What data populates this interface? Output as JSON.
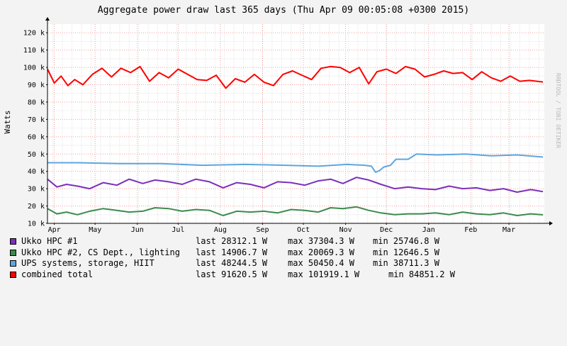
{
  "chart_data": {
    "type": "line",
    "title": "Aggregate power draw last 365 days (Thu Apr 09 00:05:08 +0300 2015)",
    "ylabel": "Watts",
    "watermark": "RRDTOOL / TOBI OETIKER",
    "ylim": [
      10000,
      125000
    ],
    "yticks": [
      {
        "value": 10000,
        "label": "10 k"
      },
      {
        "value": 20000,
        "label": "20 k"
      },
      {
        "value": 30000,
        "label": "30 k"
      },
      {
        "value": 40000,
        "label": "40 k"
      },
      {
        "value": 50000,
        "label": "50 k"
      },
      {
        "value": 60000,
        "label": "60 k"
      },
      {
        "value": 70000,
        "label": "70 k"
      },
      {
        "value": 80000,
        "label": "80 k"
      },
      {
        "value": 90000,
        "label": "90 k"
      },
      {
        "value": 100000,
        "label": "100 k"
      },
      {
        "value": 110000,
        "label": "110 k"
      },
      {
        "value": 120000,
        "label": "120 k"
      }
    ],
    "xlim": [
      "2014-04-09",
      "2015-04-09"
    ],
    "xticks": [
      {
        "date": "2014-04-14",
        "label": "Apr"
      },
      {
        "date": "2014-05-14",
        "label": "May"
      },
      {
        "date": "2014-06-14",
        "label": "Jun"
      },
      {
        "date": "2014-07-14",
        "label": "Jul"
      },
      {
        "date": "2014-08-14",
        "label": "Aug"
      },
      {
        "date": "2014-09-14",
        "label": "Sep"
      },
      {
        "date": "2014-10-14",
        "label": "Oct"
      },
      {
        "date": "2014-11-14",
        "label": "Nov"
      },
      {
        "date": "2014-12-14",
        "label": "Dec"
      },
      {
        "date": "2015-01-14",
        "label": "Jan"
      },
      {
        "date": "2015-02-14",
        "label": "Feb"
      },
      {
        "date": "2015-03-14",
        "label": "Mar"
      }
    ],
    "grid": true,
    "series": [
      {
        "name": "Ukko HPC #1",
        "color": "#7b2fbe",
        "last": "last 28312.1 W",
        "max": "max 37304.3 W",
        "min": "min 25746.8 W",
        "x": [
          "2014-04-09",
          "2014-04-16",
          "2014-04-23",
          "2014-05-01",
          "2014-05-10",
          "2014-05-20",
          "2014-05-30",
          "2014-06-08",
          "2014-06-18",
          "2014-06-27",
          "2014-07-07",
          "2014-07-17",
          "2014-07-27",
          "2014-08-06",
          "2014-08-16",
          "2014-08-26",
          "2014-09-05",
          "2014-09-15",
          "2014-09-25",
          "2014-10-05",
          "2014-10-15",
          "2014-10-25",
          "2014-11-03",
          "2014-11-12",
          "2014-11-22",
          "2014-12-01",
          "2014-12-10",
          "2014-12-20",
          "2014-12-30",
          "2015-01-09",
          "2015-01-19",
          "2015-01-29",
          "2015-02-08",
          "2015-02-18",
          "2015-02-28",
          "2015-03-10",
          "2015-03-20",
          "2015-03-30",
          "2015-04-08"
        ],
        "values": [
          35500,
          31000,
          32500,
          31500,
          30000,
          33500,
          32000,
          35500,
          33000,
          35000,
          34000,
          32500,
          35500,
          34000,
          30500,
          33500,
          32500,
          30500,
          34000,
          33500,
          32000,
          34500,
          35500,
          33000,
          36500,
          35000,
          32500,
          30000,
          31000,
          30000,
          29500,
          31500,
          30000,
          30500,
          29000,
          30000,
          28000,
          29500,
          28312
        ]
      },
      {
        "name": "Ukko HPC #2, CS Dept., lighting",
        "color": "#3d8a4e",
        "last": "last 14906.7 W",
        "max": "max 20069.3 W",
        "min": "min 12646.5 W",
        "x": [
          "2014-04-09",
          "2014-04-16",
          "2014-04-23",
          "2014-05-01",
          "2014-05-10",
          "2014-05-20",
          "2014-05-30",
          "2014-06-08",
          "2014-06-18",
          "2014-06-27",
          "2014-07-07",
          "2014-07-17",
          "2014-07-27",
          "2014-08-06",
          "2014-08-16",
          "2014-08-26",
          "2014-09-05",
          "2014-09-15",
          "2014-09-25",
          "2014-10-05",
          "2014-10-15",
          "2014-10-25",
          "2014-11-03",
          "2014-11-12",
          "2014-11-22",
          "2014-12-01",
          "2014-12-10",
          "2014-12-20",
          "2014-12-30",
          "2015-01-09",
          "2015-01-19",
          "2015-01-29",
          "2015-02-08",
          "2015-02-18",
          "2015-02-28",
          "2015-03-10",
          "2015-03-20",
          "2015-03-30",
          "2015-04-08"
        ],
        "values": [
          18500,
          15500,
          16500,
          15000,
          17000,
          18500,
          17500,
          16500,
          17000,
          19000,
          18500,
          17000,
          18000,
          17500,
          14500,
          17000,
          16500,
          17000,
          16000,
          18000,
          17500,
          16500,
          19000,
          18500,
          19500,
          17500,
          16000,
          15000,
          15500,
          15500,
          16000,
          15000,
          16500,
          15500,
          15000,
          16000,
          14500,
          15500,
          14907
        ]
      },
      {
        "name": "UPS systems, storage, HIIT",
        "color": "#5ea6de",
        "last": "last 48244.5 W",
        "max": "max 50450.4 W",
        "min": "min 38711.3 W",
        "x": [
          "2014-04-09",
          "2014-05-01",
          "2014-06-01",
          "2014-07-01",
          "2014-08-01",
          "2014-09-01",
          "2014-10-01",
          "2014-10-25",
          "2014-11-15",
          "2014-11-28",
          "2014-12-03",
          "2014-12-06",
          "2014-12-09",
          "2014-12-12",
          "2014-12-17",
          "2014-12-21",
          "2014-12-30",
          "2015-01-05",
          "2015-01-20",
          "2015-02-10",
          "2015-03-01",
          "2015-03-20",
          "2015-04-08"
        ],
        "values": [
          45000,
          45000,
          44500,
          44500,
          43500,
          44000,
          43500,
          43000,
          44000,
          43500,
          43000,
          39500,
          40500,
          42500,
          43500,
          47000,
          47000,
          50000,
          49500,
          50000,
          49000,
          49500,
          48245
        ]
      },
      {
        "name": "combined total",
        "color": "#ff0000",
        "last": "last 91620.5 W",
        "max": "max 101919.1 W",
        "min": "min 84851.2 W",
        "x": [
          "2014-04-09",
          "2014-04-14",
          "2014-04-19",
          "2014-04-24",
          "2014-04-29",
          "2014-05-05",
          "2014-05-12",
          "2014-05-19",
          "2014-05-26",
          "2014-06-02",
          "2014-06-09",
          "2014-06-16",
          "2014-06-23",
          "2014-06-30",
          "2014-07-07",
          "2014-07-14",
          "2014-07-21",
          "2014-07-28",
          "2014-08-04",
          "2014-08-11",
          "2014-08-18",
          "2014-08-25",
          "2014-09-01",
          "2014-09-08",
          "2014-09-15",
          "2014-09-22",
          "2014-09-29",
          "2014-10-06",
          "2014-10-13",
          "2014-10-20",
          "2014-10-27",
          "2014-11-03",
          "2014-11-10",
          "2014-11-17",
          "2014-11-24",
          "2014-12-01",
          "2014-12-07",
          "2014-12-14",
          "2014-12-21",
          "2014-12-28",
          "2015-01-04",
          "2015-01-11",
          "2015-01-18",
          "2015-01-25",
          "2015-02-01",
          "2015-02-08",
          "2015-02-15",
          "2015-02-22",
          "2015-03-01",
          "2015-03-08",
          "2015-03-15",
          "2015-03-22",
          "2015-03-29",
          "2015-04-08"
        ],
        "values": [
          99000,
          91000,
          95000,
          89500,
          93000,
          90000,
          96000,
          99500,
          94500,
          99500,
          97000,
          100500,
          92000,
          97000,
          94000,
          99000,
          96000,
          93000,
          92500,
          95500,
          88000,
          93500,
          91500,
          96000,
          91500,
          89500,
          96000,
          98000,
          95500,
          93000,
          99500,
          100500,
          100000,
          97000,
          100000,
          90500,
          97500,
          99000,
          96500,
          100500,
          99000,
          94500,
          96000,
          98000,
          96500,
          97000,
          93000,
          97500,
          94000,
          92000,
          95000,
          92000,
          92500,
          91620
        ]
      }
    ]
  }
}
